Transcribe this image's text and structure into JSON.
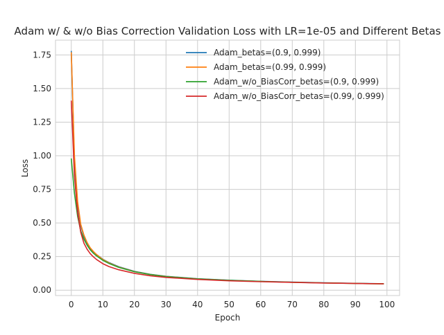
{
  "chart_data": {
    "type": "line",
    "title": "Adam w/ & w/o Bias Correction Validation Loss with LR=1e-05 and Different Betas",
    "xlabel": "Epoch",
    "ylabel": "Loss",
    "xlim": [
      -5,
      104
    ],
    "ylim": [
      -0.04,
      1.86
    ],
    "xticks": [
      0,
      10,
      20,
      30,
      40,
      50,
      60,
      70,
      80,
      90,
      100
    ],
    "yticks": [
      0.0,
      0.25,
      0.5,
      0.75,
      1.0,
      1.25,
      1.5,
      1.75
    ],
    "ytick_labels": [
      "0.00",
      "0.25",
      "0.50",
      "0.75",
      "1.00",
      "1.25",
      "1.50",
      "1.75"
    ],
    "xtick_labels": [
      "0",
      "10",
      "20",
      "30",
      "40",
      "50",
      "60",
      "70",
      "80",
      "90",
      "100"
    ],
    "grid": true,
    "legend_position": "top-right",
    "x": [
      0,
      1,
      2,
      3,
      4,
      5,
      6,
      7,
      8,
      10,
      12,
      15,
      20,
      25,
      30,
      40,
      50,
      60,
      70,
      80,
      90,
      99
    ],
    "series": [
      {
        "name": "Adam_betas=(0.9, 0.999)",
        "color": "#1f77b4",
        "values": [
          1.78,
          0.95,
          0.63,
          0.48,
          0.4,
          0.35,
          0.31,
          0.285,
          0.265,
          0.23,
          0.205,
          0.175,
          0.14,
          0.118,
          0.103,
          0.085,
          0.074,
          0.066,
          0.06,
          0.055,
          0.051,
          0.048
        ]
      },
      {
        "name": "Adam_betas=(0.99, 0.999)",
        "color": "#ff7f0e",
        "values": [
          1.77,
          1.0,
          0.66,
          0.49,
          0.41,
          0.355,
          0.315,
          0.288,
          0.265,
          0.228,
          0.202,
          0.172,
          0.138,
          0.117,
          0.102,
          0.084,
          0.073,
          0.065,
          0.059,
          0.054,
          0.05,
          0.047
        ]
      },
      {
        "name": "Adam_w/o_BiasCorr_betas=(0.9, 0.999)",
        "color": "#2ca02c",
        "values": [
          0.98,
          0.72,
          0.55,
          0.44,
          0.38,
          0.335,
          0.3,
          0.275,
          0.255,
          0.222,
          0.198,
          0.17,
          0.137,
          0.116,
          0.101,
          0.084,
          0.073,
          0.065,
          0.059,
          0.054,
          0.05,
          0.047
        ]
      },
      {
        "name": "Adam_w/o_BiasCorr_betas=(0.99, 0.999)",
        "color": "#d62728",
        "values": [
          1.41,
          0.85,
          0.58,
          0.43,
          0.35,
          0.305,
          0.272,
          0.248,
          0.228,
          0.197,
          0.175,
          0.152,
          0.125,
          0.107,
          0.095,
          0.08,
          0.07,
          0.063,
          0.058,
          0.053,
          0.05,
          0.047
        ]
      }
    ]
  }
}
